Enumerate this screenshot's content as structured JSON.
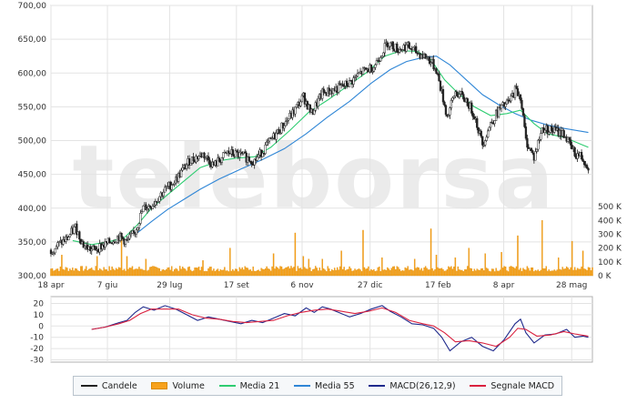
{
  "watermark": "teleborsa",
  "colors": {
    "candle": "#222222",
    "volume": "#f7a21b",
    "ma21": "#2ecc71",
    "ma55": "#2f86d6",
    "macd": "#1f2a8c",
    "signal": "#d9213f",
    "grid": "#e3e3e3",
    "frame": "#b0b0b0"
  },
  "legend": [
    {
      "key": "candle",
      "label": "Candele",
      "kind": "line"
    },
    {
      "key": "volume",
      "label": "Volume",
      "kind": "box"
    },
    {
      "key": "ma21",
      "label": "Media 21",
      "kind": "line"
    },
    {
      "key": "ma55",
      "label": "Media 55",
      "kind": "line"
    },
    {
      "key": "macd",
      "label": "MACD(26,12,9)",
      "kind": "line"
    },
    {
      "key": "signal",
      "label": "Segnale MACD",
      "kind": "line"
    }
  ],
  "chart_data": [
    {
      "type": "candlestick",
      "name": "price",
      "ylim": [
        300,
        700
      ],
      "yticks": [
        300,
        350,
        400,
        450,
        500,
        550,
        600,
        650,
        700
      ],
      "ytick_labels": [
        "300,00",
        "350,00",
        "400,00",
        "450,00",
        "500,00",
        "550,00",
        "600,00",
        "650,00",
        "700,00"
      ],
      "xticks": [
        "18 apr",
        "7 giu",
        "29 lug",
        "17 set",
        "6 nov",
        "27 dic",
        "17 feb",
        "8 apr",
        "28 mag"
      ],
      "grid": true,
      "close_anchors": [
        [
          0,
          338
        ],
        [
          12,
          355
        ],
        [
          18,
          372
        ],
        [
          24,
          345
        ],
        [
          30,
          338
        ],
        [
          40,
          346
        ],
        [
          50,
          358
        ],
        [
          56,
          350
        ],
        [
          62,
          365
        ],
        [
          68,
          400
        ],
        [
          74,
          404
        ],
        [
          82,
          423
        ],
        [
          92,
          442
        ],
        [
          102,
          470
        ],
        [
          112,
          480
        ],
        [
          120,
          463
        ],
        [
          130,
          482
        ],
        [
          140,
          478
        ],
        [
          150,
          470
        ],
        [
          158,
          490
        ],
        [
          168,
          515
        ],
        [
          178,
          540
        ],
        [
          186,
          565
        ],
        [
          192,
          540
        ],
        [
          200,
          570
        ],
        [
          210,
          576
        ],
        [
          220,
          585
        ],
        [
          228,
          600
        ],
        [
          238,
          610
        ],
        [
          248,
          645
        ],
        [
          256,
          635
        ],
        [
          262,
          640
        ],
        [
          270,
          630
        ],
        [
          278,
          622
        ],
        [
          284,
          605
        ],
        [
          292,
          535
        ],
        [
          298,
          572
        ],
        [
          306,
          560
        ],
        [
          312,
          538
        ],
        [
          318,
          495
        ],
        [
          324,
          525
        ],
        [
          330,
          545
        ],
        [
          338,
          558
        ],
        [
          342,
          575
        ],
        [
          346,
          566
        ],
        [
          350,
          500
        ],
        [
          356,
          475
        ],
        [
          362,
          518
        ],
        [
          370,
          515
        ],
        [
          378,
          510
        ],
        [
          386,
          480
        ],
        [
          390,
          478
        ],
        [
          396,
          462
        ]
      ],
      "ma21": [
        [
          16,
          352
        ],
        [
          30,
          346
        ],
        [
          42,
          350
        ],
        [
          54,
          356
        ],
        [
          64,
          376
        ],
        [
          74,
          400
        ],
        [
          86,
          420
        ],
        [
          98,
          440
        ],
        [
          110,
          460
        ],
        [
          124,
          470
        ],
        [
          136,
          474
        ],
        [
          150,
          476
        ],
        [
          162,
          490
        ],
        [
          176,
          515
        ],
        [
          190,
          542
        ],
        [
          204,
          560
        ],
        [
          218,
          580
        ],
        [
          232,
          600
        ],
        [
          246,
          625
        ],
        [
          258,
          633
        ],
        [
          270,
          632
        ],
        [
          280,
          620
        ],
        [
          290,
          590
        ],
        [
          300,
          570
        ],
        [
          312,
          550
        ],
        [
          324,
          537
        ],
        [
          336,
          540
        ],
        [
          346,
          545
        ],
        [
          356,
          525
        ],
        [
          366,
          510
        ],
        [
          378,
          505
        ],
        [
          390,
          495
        ],
        [
          396,
          490
        ]
      ],
      "ma55": [
        [
          64,
          364
        ],
        [
          74,
          380
        ],
        [
          86,
          398
        ],
        [
          98,
          413
        ],
        [
          110,
          428
        ],
        [
          124,
          443
        ],
        [
          140,
          458
        ],
        [
          156,
          472
        ],
        [
          172,
          488
        ],
        [
          188,
          510
        ],
        [
          204,
          535
        ],
        [
          220,
          558
        ],
        [
          236,
          585
        ],
        [
          250,
          605
        ],
        [
          262,
          617
        ],
        [
          274,
          623
        ],
        [
          284,
          625
        ],
        [
          294,
          612
        ],
        [
          306,
          590
        ],
        [
          318,
          568
        ],
        [
          330,
          553
        ],
        [
          342,
          540
        ],
        [
          354,
          530
        ],
        [
          366,
          523
        ],
        [
          378,
          518
        ],
        [
          390,
          514
        ],
        [
          396,
          512
        ]
      ]
    },
    {
      "type": "bar",
      "name": "volume",
      "ylim": [
        0,
        600000
      ],
      "yticks": [
        0,
        100000,
        200000,
        300000,
        400000,
        500000
      ],
      "ytick_labels": [
        "0 K",
        "100 K",
        "200 K",
        "300 K",
        "400 K",
        "500 K"
      ],
      "baseline_range": [
        30000,
        70000
      ],
      "spikes": [
        [
          8,
          150000
        ],
        [
          34,
          140000
        ],
        [
          52,
          310000
        ],
        [
          56,
          140000
        ],
        [
          70,
          120000
        ],
        [
          112,
          110000
        ],
        [
          132,
          200000
        ],
        [
          164,
          160000
        ],
        [
          180,
          310000
        ],
        [
          186,
          140000
        ],
        [
          190,
          120000
        ],
        [
          200,
          120000
        ],
        [
          214,
          180000
        ],
        [
          230,
          330000
        ],
        [
          244,
          130000
        ],
        [
          268,
          120000
        ],
        [
          280,
          340000
        ],
        [
          284,
          150000
        ],
        [
          298,
          130000
        ],
        [
          308,
          200000
        ],
        [
          320,
          160000
        ],
        [
          332,
          170000
        ],
        [
          344,
          290000
        ],
        [
          362,
          400000
        ],
        [
          374,
          130000
        ],
        [
          384,
          250000
        ],
        [
          392,
          180000
        ]
      ]
    },
    {
      "type": "line",
      "name": "macd",
      "ylim": [
        -32,
        26
      ],
      "yticks": [
        -30,
        -20,
        -10,
        0,
        10,
        20
      ],
      "ytick_labels": [
        "-30",
        "-20",
        "-10",
        "0",
        "10",
        "20"
      ],
      "macd": [
        [
          30,
          -3
        ],
        [
          40,
          -1
        ],
        [
          50,
          3
        ],
        [
          56,
          5
        ],
        [
          62,
          12
        ],
        [
          68,
          17
        ],
        [
          76,
          14
        ],
        [
          84,
          18
        ],
        [
          92,
          15
        ],
        [
          100,
          10
        ],
        [
          108,
          5
        ],
        [
          116,
          8
        ],
        [
          124,
          6
        ],
        [
          132,
          4
        ],
        [
          140,
          2
        ],
        [
          148,
          5
        ],
        [
          156,
          3
        ],
        [
          164,
          7
        ],
        [
          172,
          11
        ],
        [
          180,
          9
        ],
        [
          188,
          16
        ],
        [
          194,
          12
        ],
        [
          200,
          17
        ],
        [
          206,
          15
        ],
        [
          212,
          12
        ],
        [
          220,
          8
        ],
        [
          228,
          11
        ],
        [
          236,
          15
        ],
        [
          244,
          18
        ],
        [
          250,
          13
        ],
        [
          258,
          8
        ],
        [
          266,
          2
        ],
        [
          274,
          1
        ],
        [
          282,
          -2
        ],
        [
          288,
          -10
        ],
        [
          294,
          -22
        ],
        [
          302,
          -14
        ],
        [
          310,
          -10
        ],
        [
          318,
          -18
        ],
        [
          326,
          -22
        ],
        [
          334,
          -12
        ],
        [
          342,
          2
        ],
        [
          346,
          6
        ],
        [
          350,
          -6
        ],
        [
          356,
          -15
        ],
        [
          364,
          -8
        ],
        [
          372,
          -7
        ],
        [
          380,
          -3
        ],
        [
          386,
          -10
        ],
        [
          392,
          -9
        ],
        [
          396,
          -10
        ]
      ],
      "signal": [
        [
          30,
          -3
        ],
        [
          40,
          -1
        ],
        [
          50,
          2
        ],
        [
          58,
          5
        ],
        [
          66,
          11
        ],
        [
          74,
          15
        ],
        [
          84,
          15
        ],
        [
          94,
          15
        ],
        [
          104,
          10
        ],
        [
          114,
          7
        ],
        [
          124,
          6
        ],
        [
          134,
          4
        ],
        [
          144,
          3
        ],
        [
          154,
          4
        ],
        [
          164,
          5
        ],
        [
          174,
          9
        ],
        [
          184,
          12
        ],
        [
          194,
          14
        ],
        [
          204,
          15
        ],
        [
          214,
          13
        ],
        [
          224,
          11
        ],
        [
          234,
          13
        ],
        [
          244,
          16
        ],
        [
          254,
          12
        ],
        [
          264,
          5
        ],
        [
          274,
          2
        ],
        [
          282,
          0
        ],
        [
          290,
          -6
        ],
        [
          298,
          -14
        ],
        [
          308,
          -13
        ],
        [
          318,
          -15
        ],
        [
          328,
          -18
        ],
        [
          338,
          -10
        ],
        [
          344,
          -2
        ],
        [
          350,
          -3
        ],
        [
          358,
          -9
        ],
        [
          368,
          -8
        ],
        [
          378,
          -5
        ],
        [
          386,
          -7
        ],
        [
          396,
          -9
        ]
      ]
    }
  ]
}
